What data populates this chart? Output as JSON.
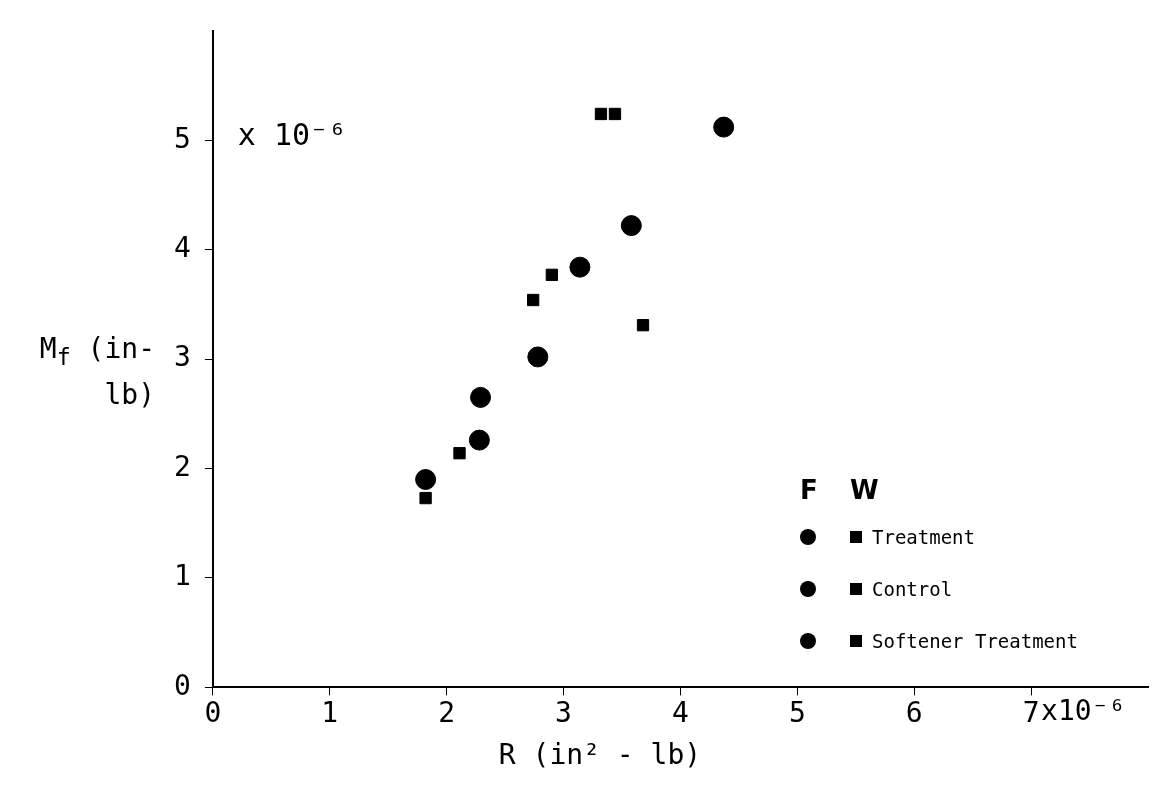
{
  "chart_data": {
    "type": "scatter",
    "xlabel": "R (in² - lb)",
    "ylabel": "M$_{f}$ (in-lb)",
    "annotations": [
      "x 10⁻⁶",
      "F",
      "W",
      "x10⁻⁶"
    ],
    "xlim": [
      0,
      8
    ],
    "xticks": [
      0,
      1,
      2,
      3,
      4,
      5,
      6,
      7
    ],
    "ylim": [
      0,
      6
    ],
    "yticks": [
      0,
      1,
      2,
      3,
      4,
      5
    ],
    "grid": false,
    "legend": "right",
    "series": [
      {
        "color": "#000000",
        "marker": "circle",
        "x": [
          3.14,
          3.58,
          4.37
        ],
        "values": [
          3.84,
          4.22,
          5.12
        ]
      },
      {
        "name": "Treatment",
        "color": "#000000",
        "marker": "square",
        "x": [
          2.74,
          3.68,
          3.32,
          3.44
        ],
        "values": [
          3.54,
          3.31,
          5.24,
          5.24
        ]
      },
      {
        "color": "#000000",
        "marker": "circle",
        "x": [
          2.78
        ],
        "values": [
          3.02
        ]
      },
      {
        "name": "Control",
        "color": "#000000",
        "marker": "square",
        "x": [
          2.9
        ],
        "values": [
          3.77
        ]
      },
      {
        "color": "#000000",
        "marker": "circle",
        "x": [
          1.82,
          2.28,
          2.29
        ],
        "values": [
          1.9,
          2.26,
          2.65
        ]
      },
      {
        "name": "Softener Treatment",
        "color": "#000000",
        "marker": "square",
        "x": [
          1.82,
          2.11
        ],
        "values": [
          1.73,
          2.14
        ]
      }
    ]
  }
}
